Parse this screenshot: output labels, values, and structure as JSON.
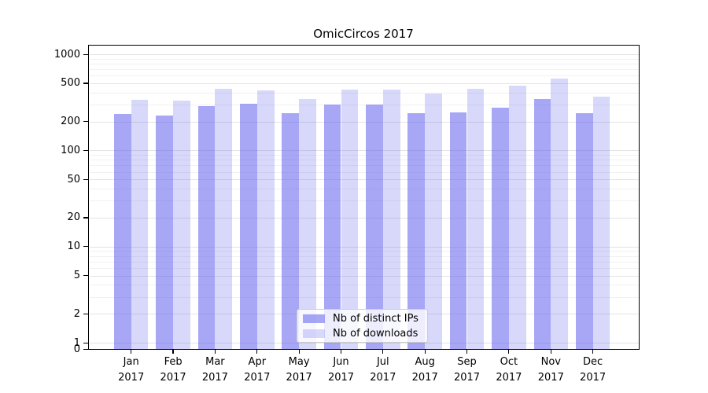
{
  "title": "OmicCircos 2017",
  "colors": {
    "distinct_ips_bar": "rgba(100,100,240,0.57)",
    "downloads_bar": "rgba(100,100,240,0.25)",
    "grid_major": "#e3e3e3",
    "grid_minor": "#f1f1f1",
    "axis": "#000000",
    "legend_border": "#cccccc",
    "legend_bg": "rgba(255,255,255,0.8)"
  },
  "chart_data": {
    "type": "bar",
    "title": "OmicCircos 2017",
    "categories": [
      "Jan",
      "Feb",
      "Mar",
      "Apr",
      "May",
      "Jun",
      "Jul",
      "Aug",
      "Sep",
      "Oct",
      "Nov",
      "Dec"
    ],
    "x_tick_year": "2017",
    "series": [
      {
        "name": "Nb of distinct IPs",
        "values": [
          240,
          230,
          290,
          305,
          245,
          300,
          300,
          245,
          250,
          280,
          345,
          245
        ]
      },
      {
        "name": "Nb of downloads",
        "values": [
          335,
          330,
          440,
          420,
          345,
          430,
          430,
          390,
          440,
          470,
          560,
          360
        ]
      }
    ],
    "yscale": "log (with 0 baseline)",
    "y_tick_labels": [
      0,
      1,
      2,
      5,
      10,
      20,
      50,
      100,
      200,
      500,
      1000
    ],
    "ylim": [
      0,
      1230
    ],
    "grid": true,
    "legend_position": "lower center",
    "xlabel": "",
    "ylabel": ""
  }
}
